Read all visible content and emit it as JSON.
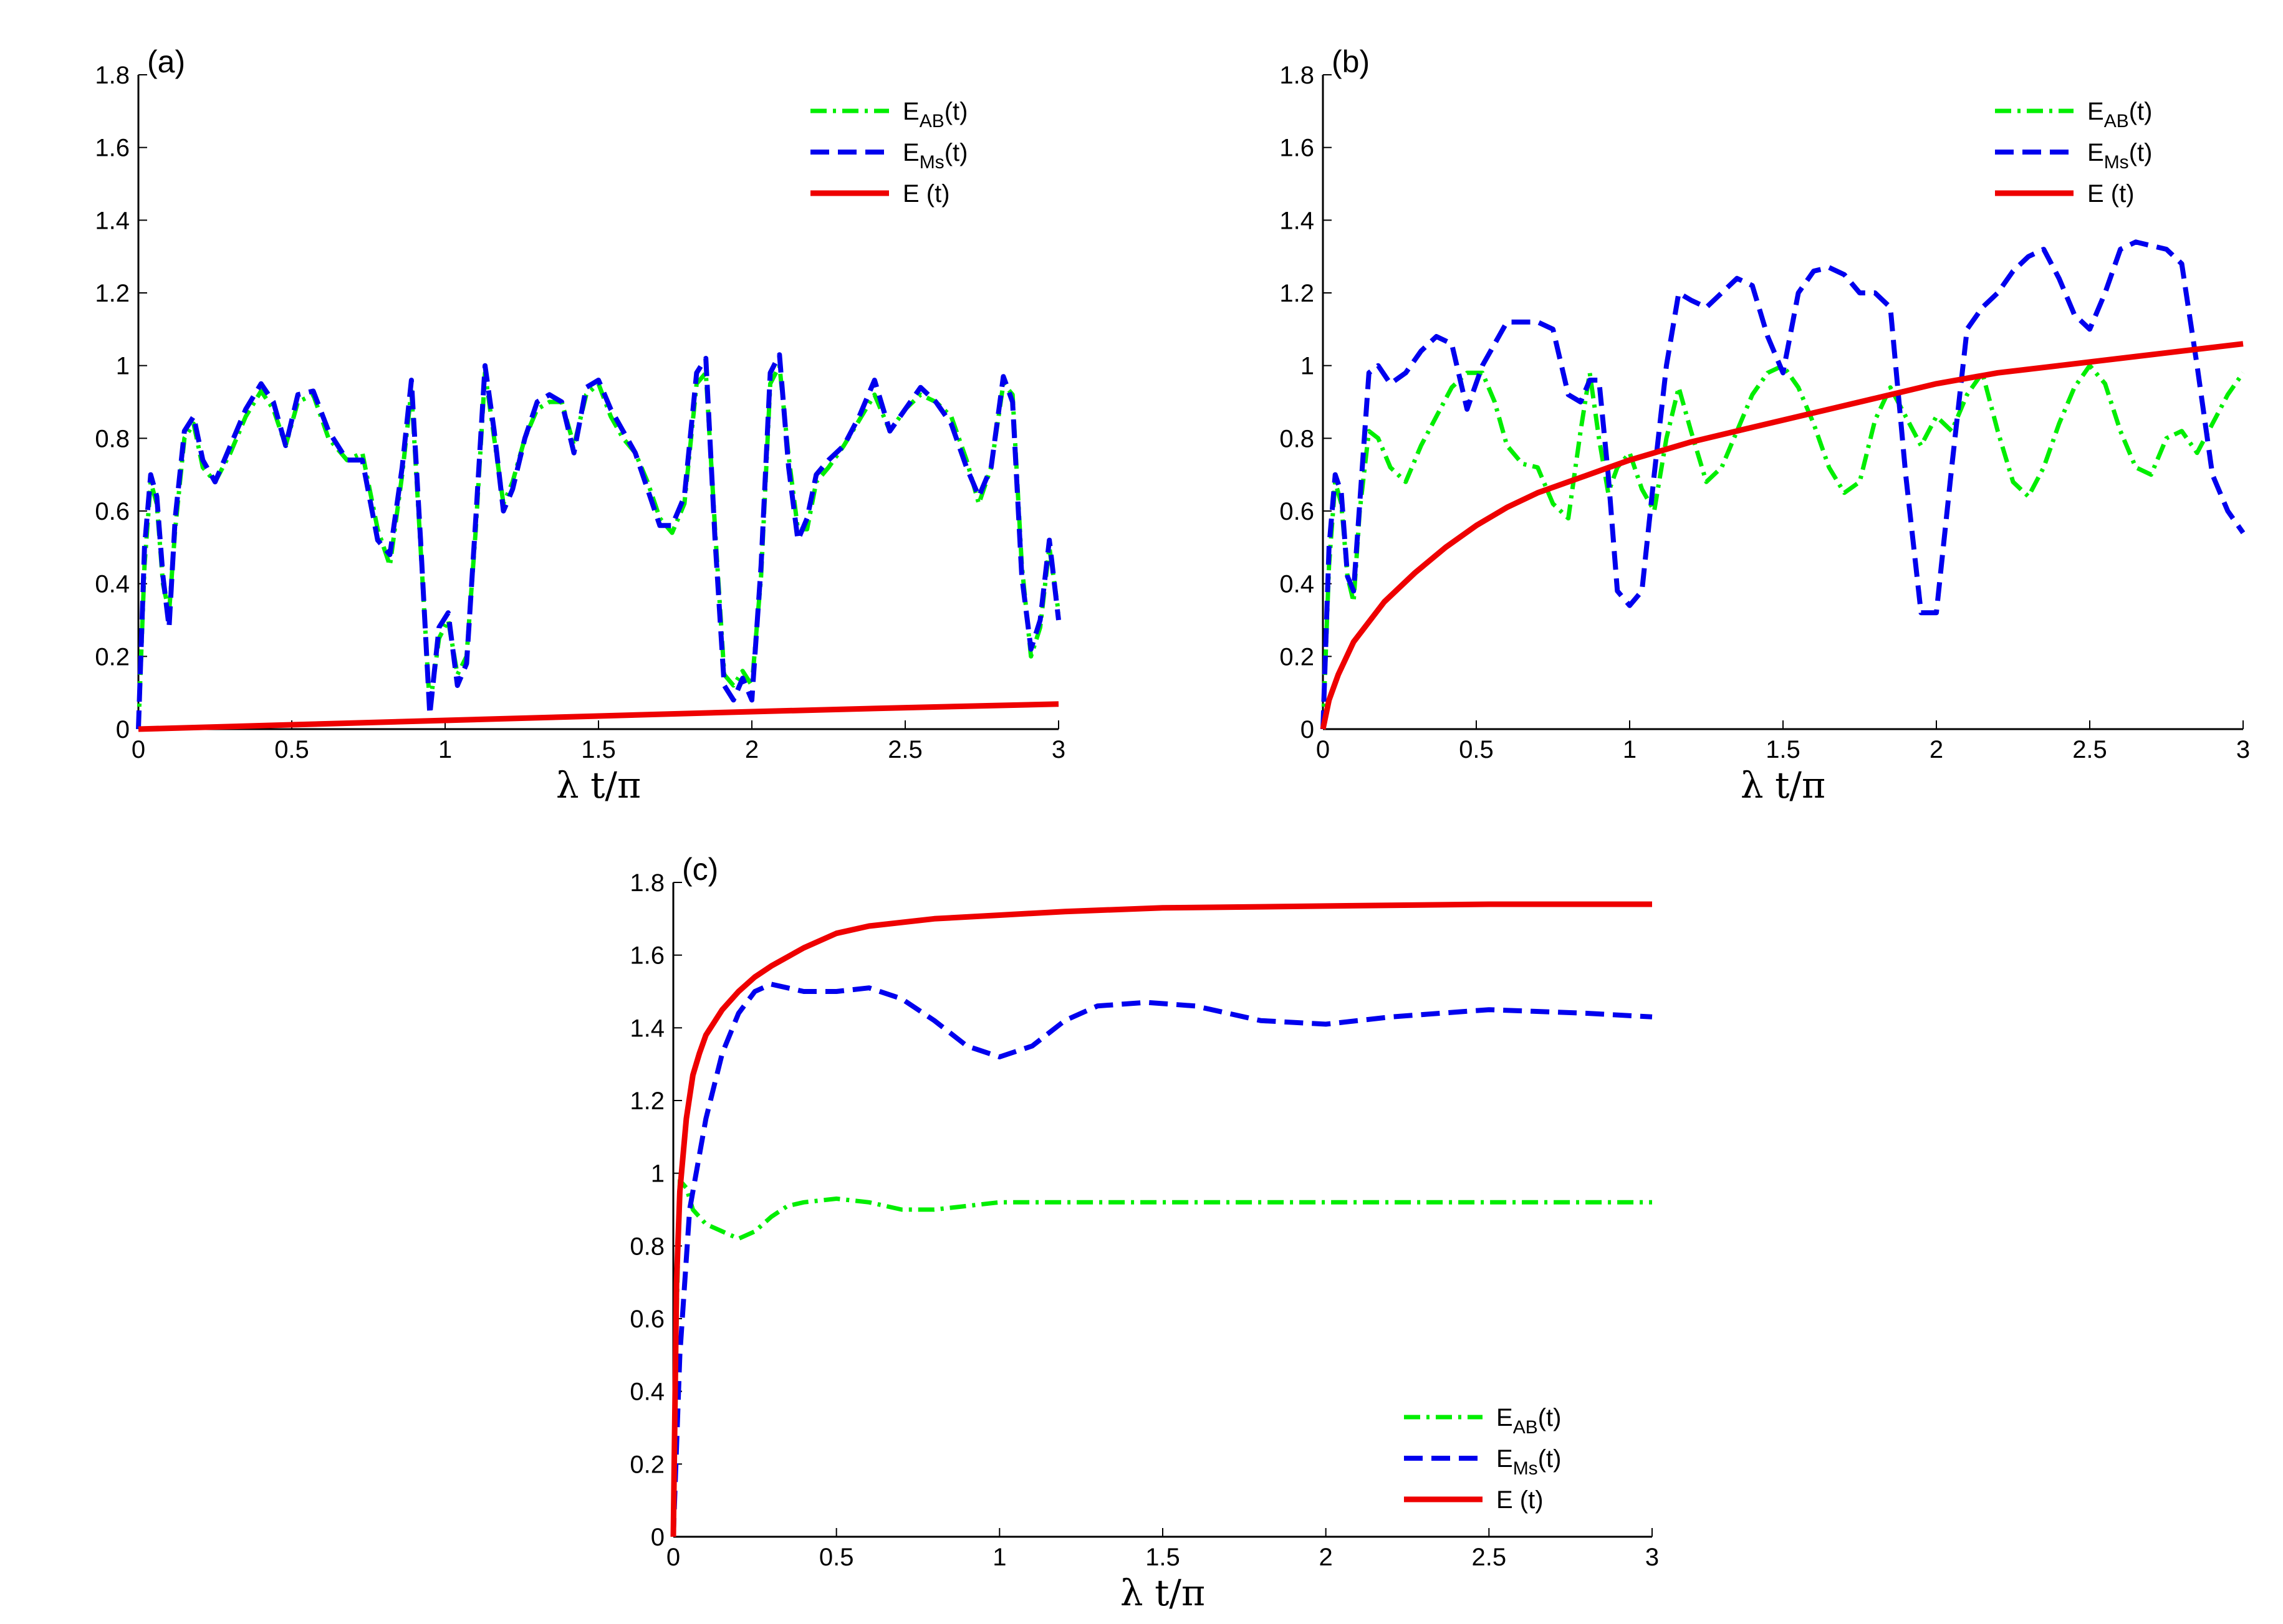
{
  "chart_data": [
    {
      "type": "line",
      "panel_label": "(a)",
      "xlabel": "λ t/π",
      "ylabel": "",
      "xlim": [
        0,
        3
      ],
      "ylim": [
        0,
        1.8
      ],
      "xticks": [
        "0",
        "0.5",
        "1",
        "1.5",
        "2",
        "2.5",
        "3"
      ],
      "yticks": [
        "0",
        "0.2",
        "0.4",
        "0.6",
        "0.8",
        "1",
        "1.2",
        "1.4",
        "1.6",
        "1.8"
      ],
      "legend_position": "top-right",
      "grid": false,
      "series": [
        {
          "name": "E_AB(t)",
          "name_main": "E",
          "name_sub": "AB",
          "name_rest": "(t)",
          "color": "#00ee00",
          "style": "dashdot",
          "x": [
            0,
            0.02,
            0.04,
            0.06,
            0.08,
            0.1,
            0.12,
            0.15,
            0.18,
            0.21,
            0.25,
            0.3,
            0.35,
            0.4,
            0.44,
            0.48,
            0.52,
            0.57,
            0.62,
            0.68,
            0.73,
            0.78,
            0.82,
            0.86,
            0.89,
            0.92,
            0.95,
            0.98,
            1.01,
            1.04,
            1.07,
            1.1,
            1.13,
            1.16,
            1.19,
            1.22,
            1.26,
            1.3,
            1.34,
            1.38,
            1.42,
            1.46,
            1.5,
            1.54,
            1.58,
            1.62,
            1.66,
            1.7,
            1.74,
            1.78,
            1.82,
            1.85,
            1.88,
            1.91,
            1.94,
            1.97,
            2.0,
            2.03,
            2.06,
            2.09,
            2.12,
            2.15,
            2.18,
            2.21,
            2.25,
            2.3,
            2.35,
            2.4,
            2.45,
            2.5,
            2.55,
            2.6,
            2.65,
            2.7,
            2.74,
            2.78,
            2.82,
            2.85,
            2.88,
            2.91,
            2.94,
            2.97,
            3.0
          ],
          "y": [
            0,
            0.45,
            0.68,
            0.62,
            0.4,
            0.32,
            0.55,
            0.8,
            0.84,
            0.72,
            0.68,
            0.76,
            0.86,
            0.93,
            0.88,
            0.78,
            0.9,
            0.92,
            0.8,
            0.74,
            0.76,
            0.55,
            0.45,
            0.7,
            0.93,
            0.5,
            0.06,
            0.25,
            0.3,
            0.15,
            0.2,
            0.55,
            0.98,
            0.8,
            0.62,
            0.68,
            0.8,
            0.88,
            0.9,
            0.9,
            0.78,
            0.92,
            0.95,
            0.86,
            0.8,
            0.76,
            0.68,
            0.58,
            0.54,
            0.62,
            0.95,
            0.98,
            0.55,
            0.15,
            0.12,
            0.16,
            0.12,
            0.42,
            0.95,
            1.0,
            0.75,
            0.55,
            0.55,
            0.68,
            0.72,
            0.78,
            0.85,
            0.92,
            0.82,
            0.88,
            0.92,
            0.9,
            0.86,
            0.74,
            0.62,
            0.72,
            0.95,
            0.92,
            0.45,
            0.2,
            0.28,
            0.5,
            0.32
          ]
        },
        {
          "name": "E_Ms(t)",
          "name_main": "E",
          "name_sub": "Ms",
          "name_rest": "(t)",
          "color": "#0000ee",
          "style": "dashed",
          "x": [
            0,
            0.02,
            0.04,
            0.06,
            0.08,
            0.1,
            0.12,
            0.15,
            0.18,
            0.21,
            0.25,
            0.3,
            0.35,
            0.4,
            0.44,
            0.48,
            0.52,
            0.57,
            0.62,
            0.68,
            0.73,
            0.78,
            0.82,
            0.86,
            0.89,
            0.92,
            0.95,
            0.98,
            1.01,
            1.04,
            1.07,
            1.1,
            1.13,
            1.16,
            1.19,
            1.22,
            1.26,
            1.3,
            1.34,
            1.38,
            1.42,
            1.46,
            1.5,
            1.54,
            1.58,
            1.62,
            1.66,
            1.7,
            1.74,
            1.78,
            1.82,
            1.85,
            1.88,
            1.91,
            1.94,
            1.97,
            2.0,
            2.03,
            2.06,
            2.09,
            2.12,
            2.15,
            2.18,
            2.21,
            2.25,
            2.3,
            2.35,
            2.4,
            2.45,
            2.5,
            2.55,
            2.6,
            2.65,
            2.7,
            2.74,
            2.78,
            2.82,
            2.85,
            2.88,
            2.91,
            2.94,
            2.97,
            3.0
          ],
          "y": [
            0,
            0.5,
            0.7,
            0.64,
            0.42,
            0.28,
            0.58,
            0.82,
            0.86,
            0.74,
            0.68,
            0.78,
            0.88,
            0.95,
            0.9,
            0.78,
            0.92,
            0.93,
            0.82,
            0.74,
            0.74,
            0.52,
            0.48,
            0.72,
            0.96,
            0.52,
            0.04,
            0.28,
            0.32,
            0.12,
            0.18,
            0.58,
            1.0,
            0.82,
            0.6,
            0.66,
            0.8,
            0.9,
            0.92,
            0.9,
            0.76,
            0.94,
            0.96,
            0.88,
            0.82,
            0.76,
            0.66,
            0.56,
            0.56,
            0.64,
            0.98,
            1.02,
            0.52,
            0.12,
            0.08,
            0.14,
            0.08,
            0.45,
            0.98,
            1.03,
            0.72,
            0.52,
            0.58,
            0.7,
            0.74,
            0.78,
            0.86,
            0.96,
            0.82,
            0.88,
            0.94,
            0.9,
            0.84,
            0.72,
            0.64,
            0.72,
            0.97,
            0.9,
            0.42,
            0.22,
            0.3,
            0.52,
            0.3
          ]
        },
        {
          "name": "E (t)",
          "name_main": "E (t)",
          "name_sub": "",
          "name_rest": "",
          "color": "#ee0000",
          "style": "solid",
          "x": [
            0,
            0.5,
            1,
            1.5,
            2,
            2.5,
            3
          ],
          "y": [
            0,
            0.012,
            0.024,
            0.036,
            0.048,
            0.059,
            0.069
          ]
        }
      ]
    },
    {
      "type": "line",
      "panel_label": "(b)",
      "xlabel": "λ t/π",
      "ylabel": "",
      "xlim": [
        0,
        3
      ],
      "ylim": [
        0,
        1.8
      ],
      "xticks": [
        "0",
        "0.5",
        "1",
        "1.5",
        "2",
        "2.5",
        "3"
      ],
      "yticks": [
        "0",
        "0.2",
        "0.4",
        "0.6",
        "0.8",
        "1",
        "1.2",
        "1.4",
        "1.6",
        "1.8"
      ],
      "legend_position": "top-right",
      "grid": false,
      "series": [
        {
          "name": "E_AB(t)",
          "name_main": "E",
          "name_sub": "AB",
          "name_rest": "(t)",
          "color": "#00ee00",
          "style": "dashdot",
          "x": [
            0,
            0.02,
            0.04,
            0.06,
            0.08,
            0.1,
            0.12,
            0.15,
            0.18,
            0.22,
            0.27,
            0.32,
            0.37,
            0.42,
            0.47,
            0.52,
            0.56,
            0.6,
            0.65,
            0.7,
            0.75,
            0.8,
            0.84,
            0.87,
            0.9,
            0.93,
            0.96,
            1.0,
            1.04,
            1.08,
            1.12,
            1.16,
            1.2,
            1.25,
            1.3,
            1.35,
            1.4,
            1.45,
            1.5,
            1.55,
            1.6,
            1.65,
            1.7,
            1.75,
            1.8,
            1.85,
            1.9,
            1.95,
            2.0,
            2.05,
            2.1,
            2.15,
            2.2,
            2.25,
            2.3,
            2.35,
            2.4,
            2.45,
            2.5,
            2.55,
            2.6,
            2.65,
            2.7,
            2.75,
            2.8,
            2.85,
            2.9,
            2.95,
            3.0
          ],
          "y": [
            0,
            0.45,
            0.68,
            0.62,
            0.42,
            0.35,
            0.6,
            0.82,
            0.8,
            0.72,
            0.68,
            0.78,
            0.86,
            0.94,
            0.98,
            0.98,
            0.9,
            0.78,
            0.73,
            0.72,
            0.62,
            0.58,
            0.82,
            0.98,
            0.8,
            0.65,
            0.72,
            0.76,
            0.66,
            0.6,
            0.8,
            0.94,
            0.82,
            0.68,
            0.72,
            0.82,
            0.92,
            0.98,
            1.0,
            0.94,
            0.84,
            0.72,
            0.65,
            0.68,
            0.85,
            0.94,
            0.86,
            0.78,
            0.86,
            0.82,
            0.92,
            0.98,
            0.82,
            0.68,
            0.64,
            0.72,
            0.84,
            0.94,
            1.0,
            0.95,
            0.82,
            0.72,
            0.7,
            0.8,
            0.82,
            0.76,
            0.84,
            0.92,
            0.98
          ]
        },
        {
          "name": "E_Ms(t)",
          "name_main": "E",
          "name_sub": "Ms",
          "name_rest": "(t)",
          "color": "#0000ee",
          "style": "dashed",
          "x": [
            0,
            0.02,
            0.04,
            0.06,
            0.08,
            0.1,
            0.12,
            0.15,
            0.18,
            0.22,
            0.27,
            0.32,
            0.37,
            0.42,
            0.47,
            0.52,
            0.56,
            0.6,
            0.65,
            0.7,
            0.75,
            0.8,
            0.84,
            0.87,
            0.9,
            0.93,
            0.96,
            1.0,
            1.04,
            1.08,
            1.12,
            1.16,
            1.2,
            1.25,
            1.3,
            1.35,
            1.4,
            1.45,
            1.5,
            1.55,
            1.6,
            1.65,
            1.7,
            1.75,
            1.8,
            1.85,
            1.9,
            1.95,
            2.0,
            2.05,
            2.1,
            2.15,
            2.2,
            2.25,
            2.3,
            2.35,
            2.4,
            2.45,
            2.5,
            2.55,
            2.6,
            2.65,
            2.7,
            2.75,
            2.8,
            2.85,
            2.9,
            2.95,
            3.0
          ],
          "y": [
            0,
            0.5,
            0.7,
            0.65,
            0.42,
            0.38,
            0.62,
            0.98,
            1.0,
            0.95,
            0.98,
            1.04,
            1.08,
            1.06,
            0.88,
            1.0,
            1.06,
            1.12,
            1.12,
            1.12,
            1.1,
            0.92,
            0.9,
            0.96,
            0.96,
            0.7,
            0.38,
            0.34,
            0.38,
            0.7,
            1.0,
            1.2,
            1.18,
            1.16,
            1.2,
            1.24,
            1.22,
            1.08,
            0.98,
            1.2,
            1.26,
            1.27,
            1.25,
            1.2,
            1.2,
            1.16,
            0.7,
            0.32,
            0.32,
            0.72,
            1.1,
            1.16,
            1.2,
            1.26,
            1.3,
            1.32,
            1.24,
            1.14,
            1.1,
            1.2,
            1.32,
            1.34,
            1.33,
            1.32,
            1.28,
            1.0,
            0.7,
            0.6,
            0.54
          ]
        },
        {
          "name": "E (t)",
          "name_main": "E (t)",
          "name_sub": "",
          "name_rest": "",
          "color": "#ee0000",
          "style": "solid",
          "x": [
            0,
            0.02,
            0.05,
            0.1,
            0.2,
            0.3,
            0.4,
            0.5,
            0.6,
            0.7,
            0.8,
            0.9,
            1.0,
            1.2,
            1.4,
            1.6,
            1.8,
            2.0,
            2.2,
            2.4,
            2.6,
            2.8,
            3.0
          ],
          "y": [
            0,
            0.08,
            0.15,
            0.24,
            0.35,
            0.43,
            0.5,
            0.56,
            0.61,
            0.65,
            0.68,
            0.71,
            0.74,
            0.79,
            0.83,
            0.87,
            0.91,
            0.95,
            0.98,
            1.0,
            1.02,
            1.04,
            1.06
          ]
        }
      ]
    },
    {
      "type": "line",
      "panel_label": "(c)",
      "xlabel": "λ t/π",
      "ylabel": "",
      "xlim": [
        0,
        3
      ],
      "ylim": [
        0,
        1.8
      ],
      "xticks": [
        "0",
        "0.5",
        "1",
        "1.5",
        "2",
        "2.5",
        "3"
      ],
      "yticks": [
        "0",
        "0.2",
        "0.4",
        "0.6",
        "0.8",
        "1",
        "1.2",
        "1.4",
        "1.6",
        "1.8"
      ],
      "legend_position": "bottom-right",
      "grid": false,
      "series": [
        {
          "name": "E_AB(t)",
          "name_main": "E",
          "name_sub": "AB",
          "name_rest": "(t)",
          "color": "#00ee00",
          "style": "dashdot",
          "x": [
            0,
            0.01,
            0.02,
            0.04,
            0.06,
            0.1,
            0.15,
            0.2,
            0.25,
            0.3,
            0.35,
            0.4,
            0.5,
            0.6,
            0.7,
            0.8,
            0.9,
            1.0,
            1.2,
            1.5,
            2.0,
            2.5,
            3.0
          ],
          "y": [
            0,
            0.6,
            0.98,
            0.96,
            0.9,
            0.86,
            0.84,
            0.82,
            0.84,
            0.88,
            0.91,
            0.92,
            0.93,
            0.92,
            0.9,
            0.9,
            0.91,
            0.92,
            0.92,
            0.92,
            0.92,
            0.92,
            0.92
          ]
        },
        {
          "name": "E_Ms(t)",
          "name_main": "E",
          "name_sub": "Ms",
          "name_rest": "(t)",
          "color": "#0000ee",
          "style": "dashed",
          "x": [
            0,
            0.02,
            0.05,
            0.1,
            0.15,
            0.2,
            0.25,
            0.3,
            0.35,
            0.4,
            0.5,
            0.6,
            0.7,
            0.8,
            0.9,
            1.0,
            1.1,
            1.2,
            1.3,
            1.45,
            1.6,
            1.8,
            2.0,
            2.2,
            2.5,
            2.8,
            3.0
          ],
          "y": [
            0,
            0.5,
            0.9,
            1.15,
            1.33,
            1.44,
            1.5,
            1.52,
            1.51,
            1.5,
            1.5,
            1.51,
            1.48,
            1.42,
            1.35,
            1.32,
            1.35,
            1.42,
            1.46,
            1.47,
            1.46,
            1.42,
            1.41,
            1.43,
            1.45,
            1.44,
            1.43
          ]
        },
        {
          "name": "E (t)",
          "name_main": "E (t)",
          "name_sub": "",
          "name_rest": "",
          "color": "#ee0000",
          "style": "solid",
          "x": [
            0,
            0.01,
            0.02,
            0.04,
            0.06,
            0.08,
            0.1,
            0.15,
            0.2,
            0.25,
            0.3,
            0.4,
            0.5,
            0.6,
            0.8,
            1.0,
            1.2,
            1.5,
            2.0,
            2.5,
            3.0
          ],
          "y": [
            0,
            0.7,
            0.95,
            1.15,
            1.27,
            1.33,
            1.38,
            1.45,
            1.5,
            1.54,
            1.57,
            1.62,
            1.66,
            1.68,
            1.7,
            1.71,
            1.72,
            1.73,
            1.735,
            1.74,
            1.74
          ]
        }
      ]
    }
  ]
}
